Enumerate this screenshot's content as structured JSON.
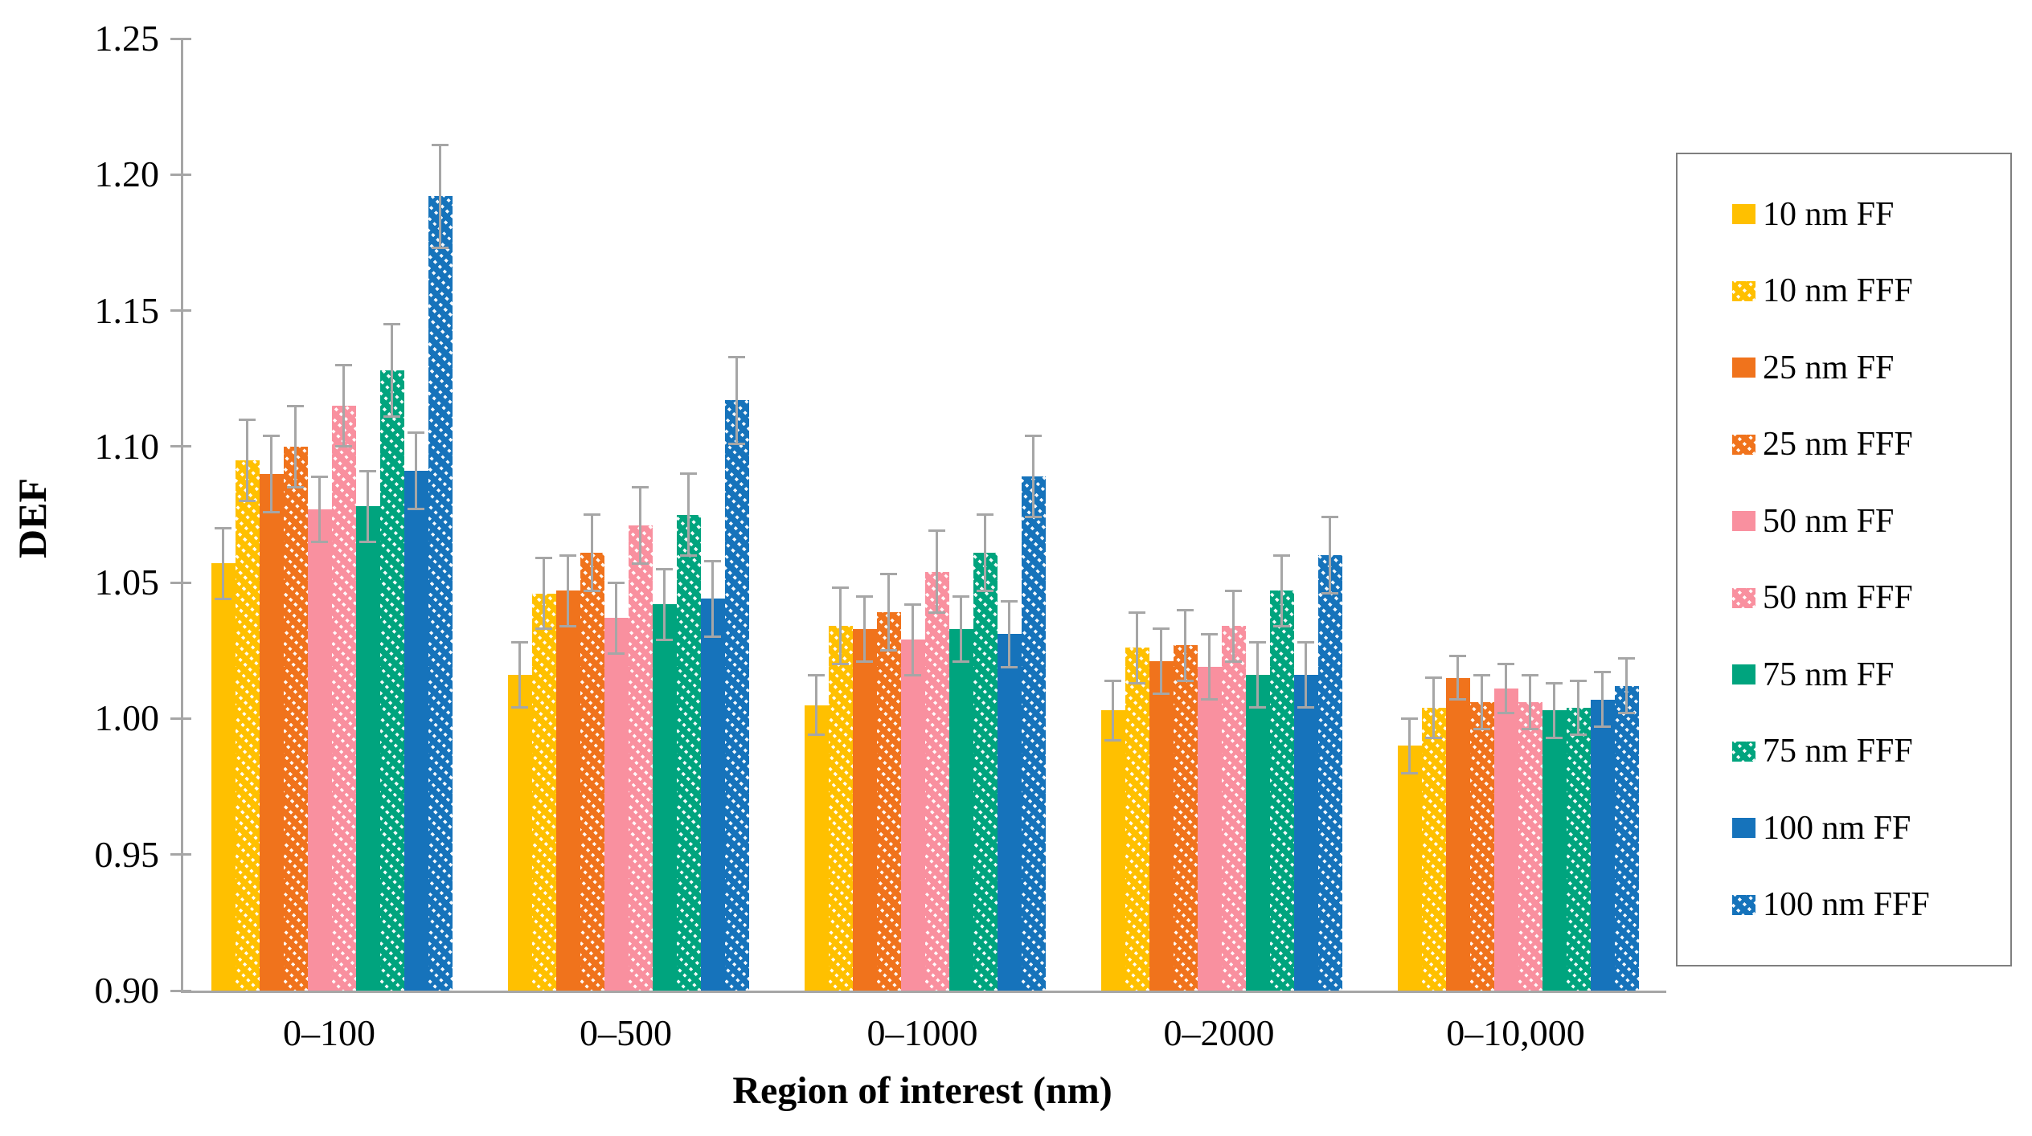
{
  "chart_data": {
    "type": "bar",
    "title": "",
    "ylabel": "DEF",
    "xlabel": "Region of interest (nm)",
    "ylim": [
      0.9,
      1.25
    ],
    "ytick_step": 0.05,
    "yticks": [
      "0.90",
      "0.95",
      "1.00",
      "1.05",
      "1.10",
      "1.15",
      "1.20",
      "1.25"
    ],
    "categories": [
      "0–100",
      "0–500",
      "0–1000",
      "0–2000",
      "0–10,000"
    ],
    "grid": false,
    "legend_position": "right",
    "axis_color": "#A6A6A6",
    "error_bar_color": "#A6A6A6",
    "legend_border_color": "#7F7F7F",
    "series": [
      {
        "name": "10 nm FF",
        "color": "#FFC000",
        "hatched": false,
        "values": [
          1.057,
          1.016,
          1.005,
          1.003,
          0.99
        ],
        "errors": [
          0.013,
          0.012,
          0.011,
          0.011,
          0.01
        ]
      },
      {
        "name": "10 nm FFF",
        "color": "#FFC000",
        "hatched": true,
        "values": [
          1.095,
          1.046,
          1.034,
          1.026,
          1.004
        ],
        "errors": [
          0.015,
          0.013,
          0.014,
          0.013,
          0.011
        ]
      },
      {
        "name": "25 nm FF",
        "color": "#F0731C",
        "hatched": false,
        "values": [
          1.09,
          1.047,
          1.033,
          1.021,
          1.015
        ],
        "errors": [
          0.014,
          0.013,
          0.012,
          0.012,
          0.008
        ]
      },
      {
        "name": "25 nm FFF",
        "color": "#F0731C",
        "hatched": true,
        "values": [
          1.1,
          1.061,
          1.039,
          1.027,
          1.006
        ],
        "errors": [
          0.015,
          0.014,
          0.014,
          0.013,
          0.01
        ]
      },
      {
        "name": "50 nm FF",
        "color": "#F9909F",
        "hatched": false,
        "values": [
          1.077,
          1.037,
          1.029,
          1.019,
          1.011
        ],
        "errors": [
          0.012,
          0.013,
          0.013,
          0.012,
          0.009
        ]
      },
      {
        "name": "50 nm FFF",
        "color": "#F9909F",
        "hatched": true,
        "values": [
          1.115,
          1.071,
          1.054,
          1.034,
          1.006
        ],
        "errors": [
          0.015,
          0.014,
          0.015,
          0.013,
          0.01
        ]
      },
      {
        "name": "75 nm FF",
        "color": "#00A47E",
        "hatched": false,
        "values": [
          1.078,
          1.042,
          1.033,
          1.016,
          1.003
        ],
        "errors": [
          0.013,
          0.013,
          0.012,
          0.012,
          0.01
        ]
      },
      {
        "name": "75 nm FFF",
        "color": "#00A47E",
        "hatched": true,
        "values": [
          1.128,
          1.075,
          1.061,
          1.047,
          1.004
        ],
        "errors": [
          0.017,
          0.015,
          0.014,
          0.013,
          0.01
        ]
      },
      {
        "name": "100 nm FF",
        "color": "#1673BB",
        "hatched": false,
        "values": [
          1.091,
          1.044,
          1.031,
          1.016,
          1.007
        ],
        "errors": [
          0.014,
          0.014,
          0.012,
          0.012,
          0.01
        ]
      },
      {
        "name": "100 nm FFF",
        "color": "#1673BB",
        "hatched": true,
        "values": [
          1.192,
          1.117,
          1.089,
          1.06,
          1.012
        ],
        "errors": [
          0.019,
          0.016,
          0.015,
          0.014,
          0.01
        ]
      }
    ]
  }
}
